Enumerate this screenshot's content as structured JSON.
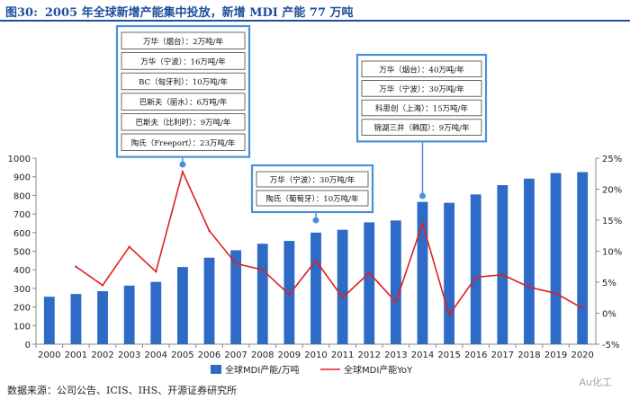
{
  "header": {
    "figure_label": "图30:",
    "title": "2005 年全球新增产能集中投放，新增 MDI 产能 77 万吨"
  },
  "source": "数据来源：公司公告、ICIS、IHS、开源证券研究所",
  "watermark": "Au化工",
  "chart_data": {
    "type": "bar",
    "categories": [
      "2000",
      "2001",
      "2002",
      "2003",
      "2004",
      "2005",
      "2006",
      "2007",
      "2008",
      "2009",
      "2010",
      "2011",
      "2012",
      "2013",
      "2014",
      "2015",
      "2016",
      "2017",
      "2018",
      "2019",
      "2020"
    ],
    "series": [
      {
        "name": "全球MDI产能/万吨",
        "type": "bar",
        "axis": "left",
        "color": "#2e6bc6",
        "values": [
          255,
          270,
          285,
          315,
          335,
          415,
          465,
          505,
          540,
          555,
          600,
          615,
          655,
          665,
          765,
          760,
          805,
          855,
          890,
          920,
          925
        ]
      },
      {
        "name": "全球MDI产能YoY",
        "type": "line",
        "axis": "right",
        "color": "#e02020",
        "values": [
          null,
          7.5,
          4.5,
          10.7,
          6.7,
          22.8,
          13.3,
          8.0,
          7.0,
          3.0,
          8.5,
          2.5,
          6.5,
          1.8,
          14.5,
          -0.3,
          5.8,
          6.2,
          4.2,
          3.2,
          0.8
        ]
      }
    ],
    "y_left": {
      "min": 0,
      "max": 1000,
      "step": 100
    },
    "y_right": {
      "min": -5,
      "max": 25,
      "step": 5,
      "unit": "%"
    },
    "legend_position": "bottom",
    "annotations": [
      {
        "year": "2005",
        "color": "#4a90d9",
        "items": [
          "万华（烟台）：2万吨/年",
          "万华（宁波）：16万吨/年",
          "BC（匈牙利）：10万吨/年",
          "巴斯夫（丽水）：6万吨/年",
          "巴斯夫（比利时）：9万吨/年",
          "陶氏（Freeport）：23万吨/年"
        ]
      },
      {
        "year": "2010",
        "color": "#4a90d9",
        "items": [
          "万华（宁波）：30万吨/年",
          "陶氏（葡萄牙）：10万吨/年"
        ]
      },
      {
        "year": "2014",
        "color": "#4a90d9",
        "items": [
          "万华（烟台）：40万吨/年",
          "万华（宁波）：30万吨/年",
          "科思创（上海）：15万吨/年",
          "锦湖三井（韩国）：9万吨/年"
        ]
      }
    ]
  }
}
